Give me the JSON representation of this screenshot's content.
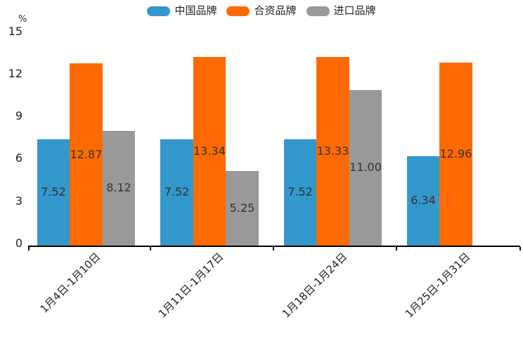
{
  "chart_data": {
    "type": "bar",
    "title": "",
    "unit_label": "%",
    "categories": [
      "1月4日-1月10日",
      "1月11日-1月17日",
      "1月18日-1月24日",
      "1月25日-1月31日"
    ],
    "series": [
      {
        "name": "中国品牌",
        "color": "#3398CC",
        "values": [
          7.52,
          7.52,
          7.52,
          6.34
        ],
        "labels": [
          "7.52",
          "7.52",
          "7.52",
          "6.34"
        ]
      },
      {
        "name": "合资品牌",
        "color": "#FD6A02",
        "values": [
          12.87,
          13.34,
          13.33,
          12.96
        ],
        "labels": [
          "12.87",
          "13.34",
          "13.33",
          "12.96"
        ]
      },
      {
        "name": "进口品牌",
        "color": "#999999",
        "values": [
          8.12,
          5.25,
          11.0,
          null
        ],
        "labels": [
          "8.12",
          "5.25",
          "11.00",
          null
        ]
      }
    ],
    "xlabel": "",
    "ylabel": "%",
    "ylim": [
      0,
      15
    ],
    "yticks": [
      0,
      3,
      6,
      9,
      12,
      15
    ],
    "grid": false,
    "legend_position": "top-center",
    "axis_color": "#000000",
    "value_label_color": "#333333",
    "tick_label_color": "#222222"
  }
}
